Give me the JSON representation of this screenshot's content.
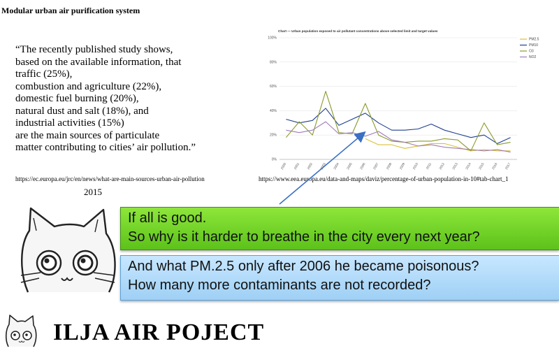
{
  "page": {
    "title": "Modular urban air purification system",
    "quote_lines": [
      "“The recently published study shows,",
      "based on the available information, that",
      "traffic (25%),",
      "combustion and agriculture (22%),",
      "domestic fuel burning (20%),",
      "natural dust and salt (18%), and",
      "industrial activities (15%)",
      "are the main sources of particulate",
      "matter contributing to cities’ air pollution.”"
    ],
    "source_left": "https://ec.europa.eu/jrc/en/news/what-are-main-sources-urban-air-pollution",
    "year": "2015",
    "source_right": "https://www.eea.europa.eu/data-and-maps/daviz/percentage-of-urban-population-in-10#tab-chart_1",
    "green_box": {
      "line1": "If all is good.",
      "line2": "So why is it harder to breathe in the city every next year?"
    },
    "blue_box": {
      "line1": "And what PM.2.5 only after 2006 he became poisonous?",
      "line2": "How many more contaminants are not recorded?"
    },
    "brand": "ILJA AIR POJECT",
    "icons": [
      "cat-face-icon",
      "cat-face-small-icon",
      "arrow-icon"
    ]
  },
  "chart_data": {
    "type": "line",
    "title": "Chart — Urban population exposed to air pollutant concentrations above selected limit and target values",
    "y_ticks": [
      "0%",
      "20%",
      "40%",
      "60%",
      "80%",
      "100%"
    ],
    "ylim": [
      0,
      100
    ],
    "x": [
      "2000",
      "2001",
      "2002",
      "2003",
      "2004",
      "2005",
      "2006",
      "2007",
      "2008",
      "2009",
      "2010",
      "2011",
      "2012",
      "2013",
      "2014",
      "2015",
      "2016",
      "2017"
    ],
    "series": [
      {
        "name": "PM2.5",
        "color": "#d9c236",
        "values": [
          null,
          null,
          null,
          null,
          null,
          null,
          17,
          12,
          12,
          9,
          11,
          13,
          13,
          10,
          7,
          8,
          7,
          7
        ]
      },
      {
        "name": "PM10",
        "color": "#1f3f8f",
        "values": [
          33,
          30,
          32,
          42,
          28,
          33,
          38,
          30,
          24,
          24,
          25,
          29,
          24,
          21,
          18,
          20,
          13,
          18
        ]
      },
      {
        "name": "O3",
        "color": "#8a9a2a",
        "values": [
          18,
          31,
          20,
          56,
          22,
          21,
          46,
          20,
          15,
          14,
          15,
          15,
          17,
          16,
          7,
          30,
          12,
          14
        ]
      },
      {
        "name": "NO2",
        "color": "#a07ab8",
        "values": [
          24,
          22,
          24,
          31,
          21,
          22,
          19,
          23,
          16,
          14,
          11,
          12,
          10,
          9,
          8,
          7,
          8,
          6
        ]
      }
    ]
  }
}
